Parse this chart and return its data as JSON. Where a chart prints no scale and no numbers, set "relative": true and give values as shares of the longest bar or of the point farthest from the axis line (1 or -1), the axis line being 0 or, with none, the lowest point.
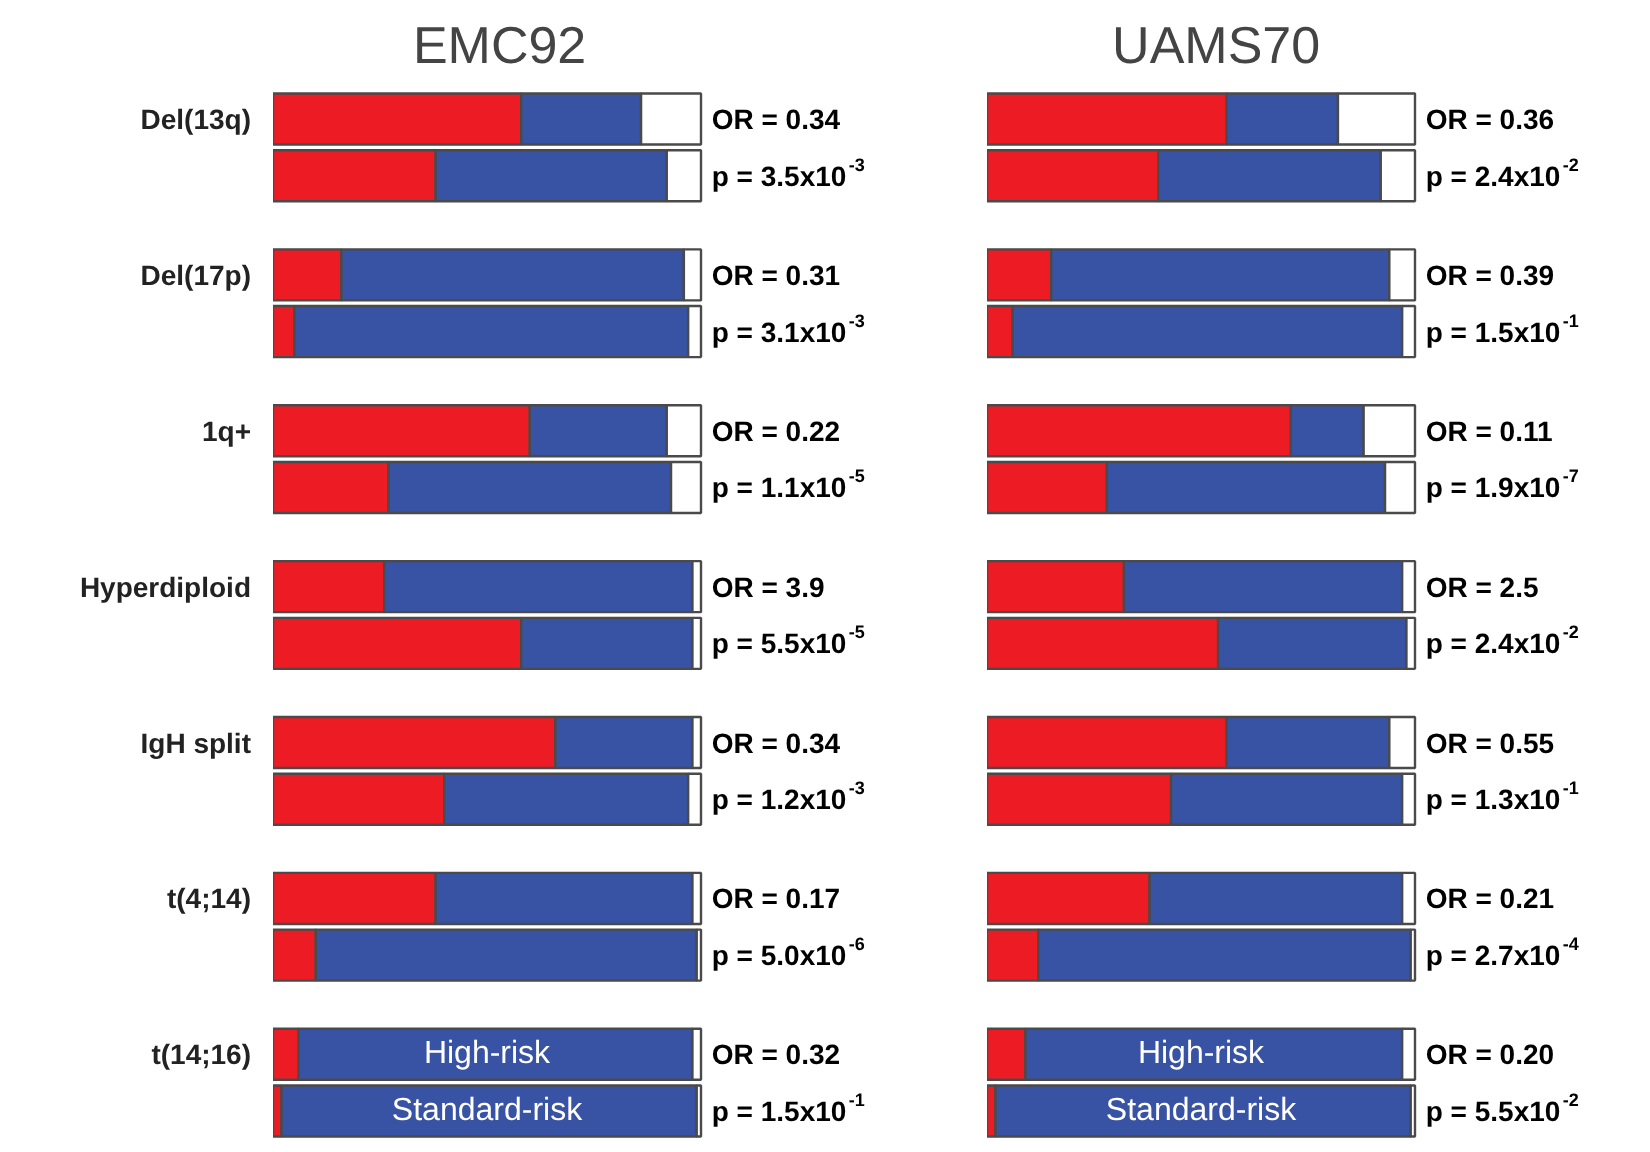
{
  "chart_data": [
    {
      "type": "bar",
      "title": "EMC92",
      "orientation": "horizontal",
      "stacked": true,
      "relative": true,
      "tick_labels": "y",
      "categories": [
        "Del(13q)",
        null,
        "Del(17p)",
        null,
        "1q+",
        null,
        "Hyperdiploid",
        null,
        "IgH split",
        null,
        "t(4;14)",
        null,
        "t(14;16)",
        null
      ],
      "series": [
        {
          "color": "#ed1c24",
          "values": [
            0.58,
            0.38,
            0.16,
            0.05,
            0.6,
            0.27,
            0.26,
            0.58,
            0.66,
            0.4,
            0.38,
            0.1,
            0.06,
            0.02
          ]
        },
        {
          "color": "#3953a4",
          "values": [
            0.28,
            0.54,
            0.8,
            0.92,
            0.32,
            0.66,
            0.72,
            0.4,
            0.32,
            0.57,
            0.6,
            0.89,
            0.92,
            0.97
          ]
        },
        {
          "color": "#ffffff",
          "values": [
            0.14,
            0.08,
            0.04,
            0.03,
            0.08,
            0.07,
            0.02,
            0.02,
            0.02,
            0.03,
            0.02,
            0.01,
            0.02,
            0.01
          ]
        }
      ],
      "annotations": [
        "OR = 0.34",
        "p = 3.5x10$^{-3}$",
        "OR = 0.31",
        "p = 3.1x10$^{-3}$",
        "OR = 0.22",
        "p = 1.1x10$^{-5}$",
        "OR = 3.9",
        "p = 5.5x10$^{-5}$",
        "OR = 0.34",
        "p = 1.2x10$^{-3}$",
        "OR = 0.17",
        "p = 5.0x10$^{-6}$",
        "OR = 0.32",
        "p = 1.5x10$^{-1}$",
        "High-risk",
        "Standard-risk"
      ]
    },
    {
      "type": "bar",
      "title": "UAMS70",
      "orientation": "horizontal",
      "stacked": true,
      "relative": true,
      "tick_labels": false,
      "categories": [
        null,
        null,
        null,
        null,
        null,
        null,
        null,
        null,
        null,
        null,
        null,
        null,
        null,
        null
      ],
      "series": [
        {
          "color": "#ed1c24",
          "values": [
            0.56,
            0.4,
            0.15,
            0.06,
            0.71,
            0.28,
            0.32,
            0.54,
            0.56,
            0.43,
            0.38,
            0.12,
            0.09,
            0.02
          ]
        },
        {
          "color": "#3953a4",
          "values": [
            0.26,
            0.52,
            0.79,
            0.91,
            0.17,
            0.65,
            0.65,
            0.44,
            0.38,
            0.54,
            0.59,
            0.87,
            0.88,
            0.97
          ]
        },
        {
          "color": "#ffffff",
          "values": [
            0.18,
            0.08,
            0.06,
            0.03,
            0.12,
            0.07,
            0.03,
            0.02,
            0.06,
            0.03,
            0.03,
            0.01,
            0.03,
            0.01
          ]
        }
      ],
      "annotations": [
        "OR = 0.36",
        "p = 2.4x10$^{-2}$",
        "OR = 0.39",
        "p = 1.5x10$^{-1}$",
        "OR = 0.11",
        "p = 1.9x10$^{-7}$",
        "OR = 2.5",
        "p = 2.4x10$^{-2}$",
        "OR = 0.55",
        "p = 1.3x10$^{-1}$",
        "OR = 0.21",
        "p = 2.7x10$^{-4}$",
        "OR = 0.20",
        "p = 5.5x10$^{-2}$",
        "High-risk",
        "Standard-risk"
      ]
    }
  ]
}
